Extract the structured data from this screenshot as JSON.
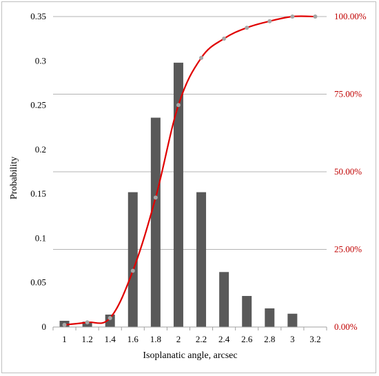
{
  "chart_data": {
    "type": "bar",
    "xlabel": "Isoplanatic angle, arcsec",
    "ylabel": "Probability",
    "categories": [
      "1",
      "1.2",
      "1.4",
      "1.6",
      "1.8",
      "2",
      "2.2",
      "2.4",
      "2.6",
      "2.8",
      "3",
      "3.2"
    ],
    "x": [
      1,
      1.2,
      1.4,
      1.6,
      1.8,
      2,
      2.2,
      2.4,
      2.6,
      2.8,
      3,
      3.2
    ],
    "ylim": [
      0,
      0.35
    ],
    "y2lim": [
      0,
      1
    ],
    "yticks": [
      "0",
      "0.05",
      "0.1",
      "0.15",
      "0.2",
      "0.25",
      "0.3",
      "0.35"
    ],
    "y2ticks": [
      "0.00%",
      "25.00%",
      "50.00%",
      "75.00%",
      "100.00%"
    ],
    "grid": "horizontal at right-axis ticks",
    "series": [
      {
        "kind": "bar",
        "axis": "left",
        "color": "#595959",
        "values": [
          0.007,
          0.006,
          0.014,
          0.152,
          0.236,
          0.298,
          0.152,
          0.062,
          0.035,
          0.021,
          0.015,
          0
        ]
      },
      {
        "kind": "line",
        "axis": "right",
        "color": "#e00000",
        "marker_color": "#a6a6a6",
        "values": [
          0.007,
          0.015,
          0.029,
          0.181,
          0.417,
          0.715,
          0.867,
          0.929,
          0.964,
          0.985,
          1.0,
          1.0
        ]
      }
    ]
  }
}
